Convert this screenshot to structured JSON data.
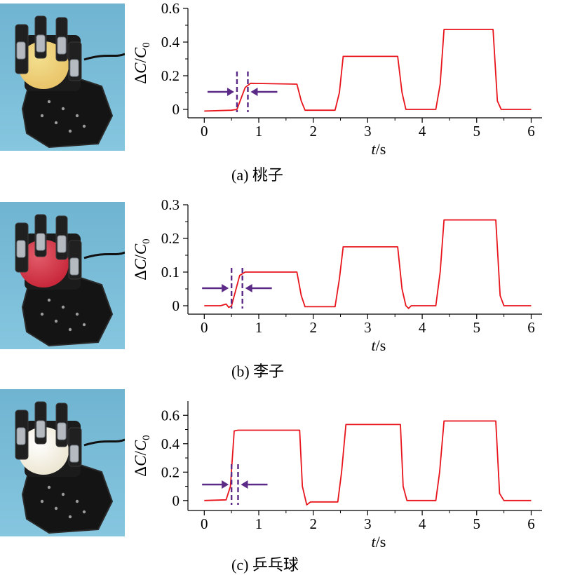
{
  "chart_data": [
    {
      "type": "line",
      "caption": "(a) 桃子",
      "ylabel": "ΔC/C0",
      "xlabel": "t/s",
      "xlim": [
        -0.3,
        6.2
      ],
      "ylim": [
        -0.05,
        0.6
      ],
      "xticks": [
        0,
        1,
        2,
        3,
        4,
        5,
        6
      ],
      "yticks": [
        0,
        0.2,
        0.4,
        0.6
      ],
      "ytick_labels": [
        "0",
        "0.2",
        "0.4",
        "0.6"
      ],
      "response_markers": [
        0.6,
        0.8
      ],
      "series": [
        {
          "color": "#e8141c",
          "x": [
            0,
            0.5,
            0.6,
            0.75,
            0.85,
            1.7,
            1.78,
            1.85,
            2.4,
            2.48,
            2.55,
            3.55,
            3.63,
            3.7,
            4.25,
            4.33,
            4.4,
            5.3,
            5.38,
            5.45,
            6.0
          ],
          "y": [
            -0.01,
            -0.005,
            0.0,
            0.13,
            0.155,
            0.15,
            0.05,
            -0.005,
            -0.005,
            0.1,
            0.315,
            0.315,
            0.1,
            0.0,
            0.0,
            0.15,
            0.475,
            0.475,
            0.05,
            0.0,
            0.0
          ]
        }
      ],
      "photo": {
        "fruit_color": "#e9c46a",
        "highlight": "#f3df8e"
      }
    },
    {
      "type": "line",
      "caption": "(b) 李子",
      "ylabel": "ΔC/C0",
      "xlabel": "t/s",
      "xlim": [
        -0.3,
        6.2
      ],
      "ylim": [
        -0.025,
        0.3
      ],
      "xticks": [
        0,
        1,
        2,
        3,
        4,
        5,
        6
      ],
      "yticks": [
        0,
        0.1,
        0.2,
        0.3
      ],
      "ytick_labels": [
        "0",
        "0.1",
        "0.2",
        "0.3"
      ],
      "response_markers": [
        0.5,
        0.7
      ],
      "series": [
        {
          "color": "#e8141c",
          "x": [
            0,
            0.3,
            0.4,
            0.45,
            0.5,
            0.65,
            0.75,
            1.7,
            1.78,
            1.85,
            2.4,
            2.48,
            2.55,
            3.55,
            3.63,
            3.7,
            3.75,
            3.8,
            4.25,
            4.33,
            4.4,
            5.35,
            5.43,
            5.5,
            6.0
          ],
          "y": [
            0.0,
            0.0,
            0.005,
            -0.005,
            0.0,
            0.09,
            0.1,
            0.1,
            0.03,
            -0.003,
            -0.003,
            0.08,
            0.175,
            0.175,
            0.05,
            0.0,
            -0.008,
            0.0,
            0.0,
            0.1,
            0.255,
            0.255,
            0.03,
            0.0,
            0.0
          ]
        }
      ],
      "photo": {
        "fruit_color": "#c8283a",
        "highlight": "#e25c6a"
      }
    },
    {
      "type": "line",
      "caption": "(c) 乒乓球",
      "ylabel": "ΔC/C0",
      "xlabel": "t/s",
      "xlim": [
        -0.3,
        6.2
      ],
      "ylim": [
        -0.07,
        0.7
      ],
      "xticks": [
        0,
        1,
        2,
        3,
        4,
        5,
        6
      ],
      "yticks": [
        0,
        0.2,
        0.4,
        0.6
      ],
      "ytick_labels": [
        "0",
        "0.2",
        "0.4",
        "0.6"
      ],
      "response_markers": [
        0.5,
        0.62
      ],
      "series": [
        {
          "color": "#e8141c",
          "x": [
            0,
            0.4,
            0.48,
            0.55,
            0.62,
            1.75,
            1.8,
            1.88,
            1.95,
            2.45,
            2.52,
            2.6,
            3.6,
            3.65,
            3.72,
            4.25,
            4.32,
            4.4,
            5.35,
            5.42,
            5.5,
            6.0
          ],
          "y": [
            0.0,
            0.005,
            0.1,
            0.49,
            0.495,
            0.495,
            0.1,
            -0.03,
            -0.01,
            -0.01,
            0.2,
            0.535,
            0.535,
            0.1,
            0.0,
            0.0,
            0.2,
            0.56,
            0.56,
            0.05,
            0.0,
            0.0
          ]
        }
      ],
      "photo": {
        "fruit_color": "#ece6d2",
        "highlight": "#ffffff"
      }
    }
  ]
}
